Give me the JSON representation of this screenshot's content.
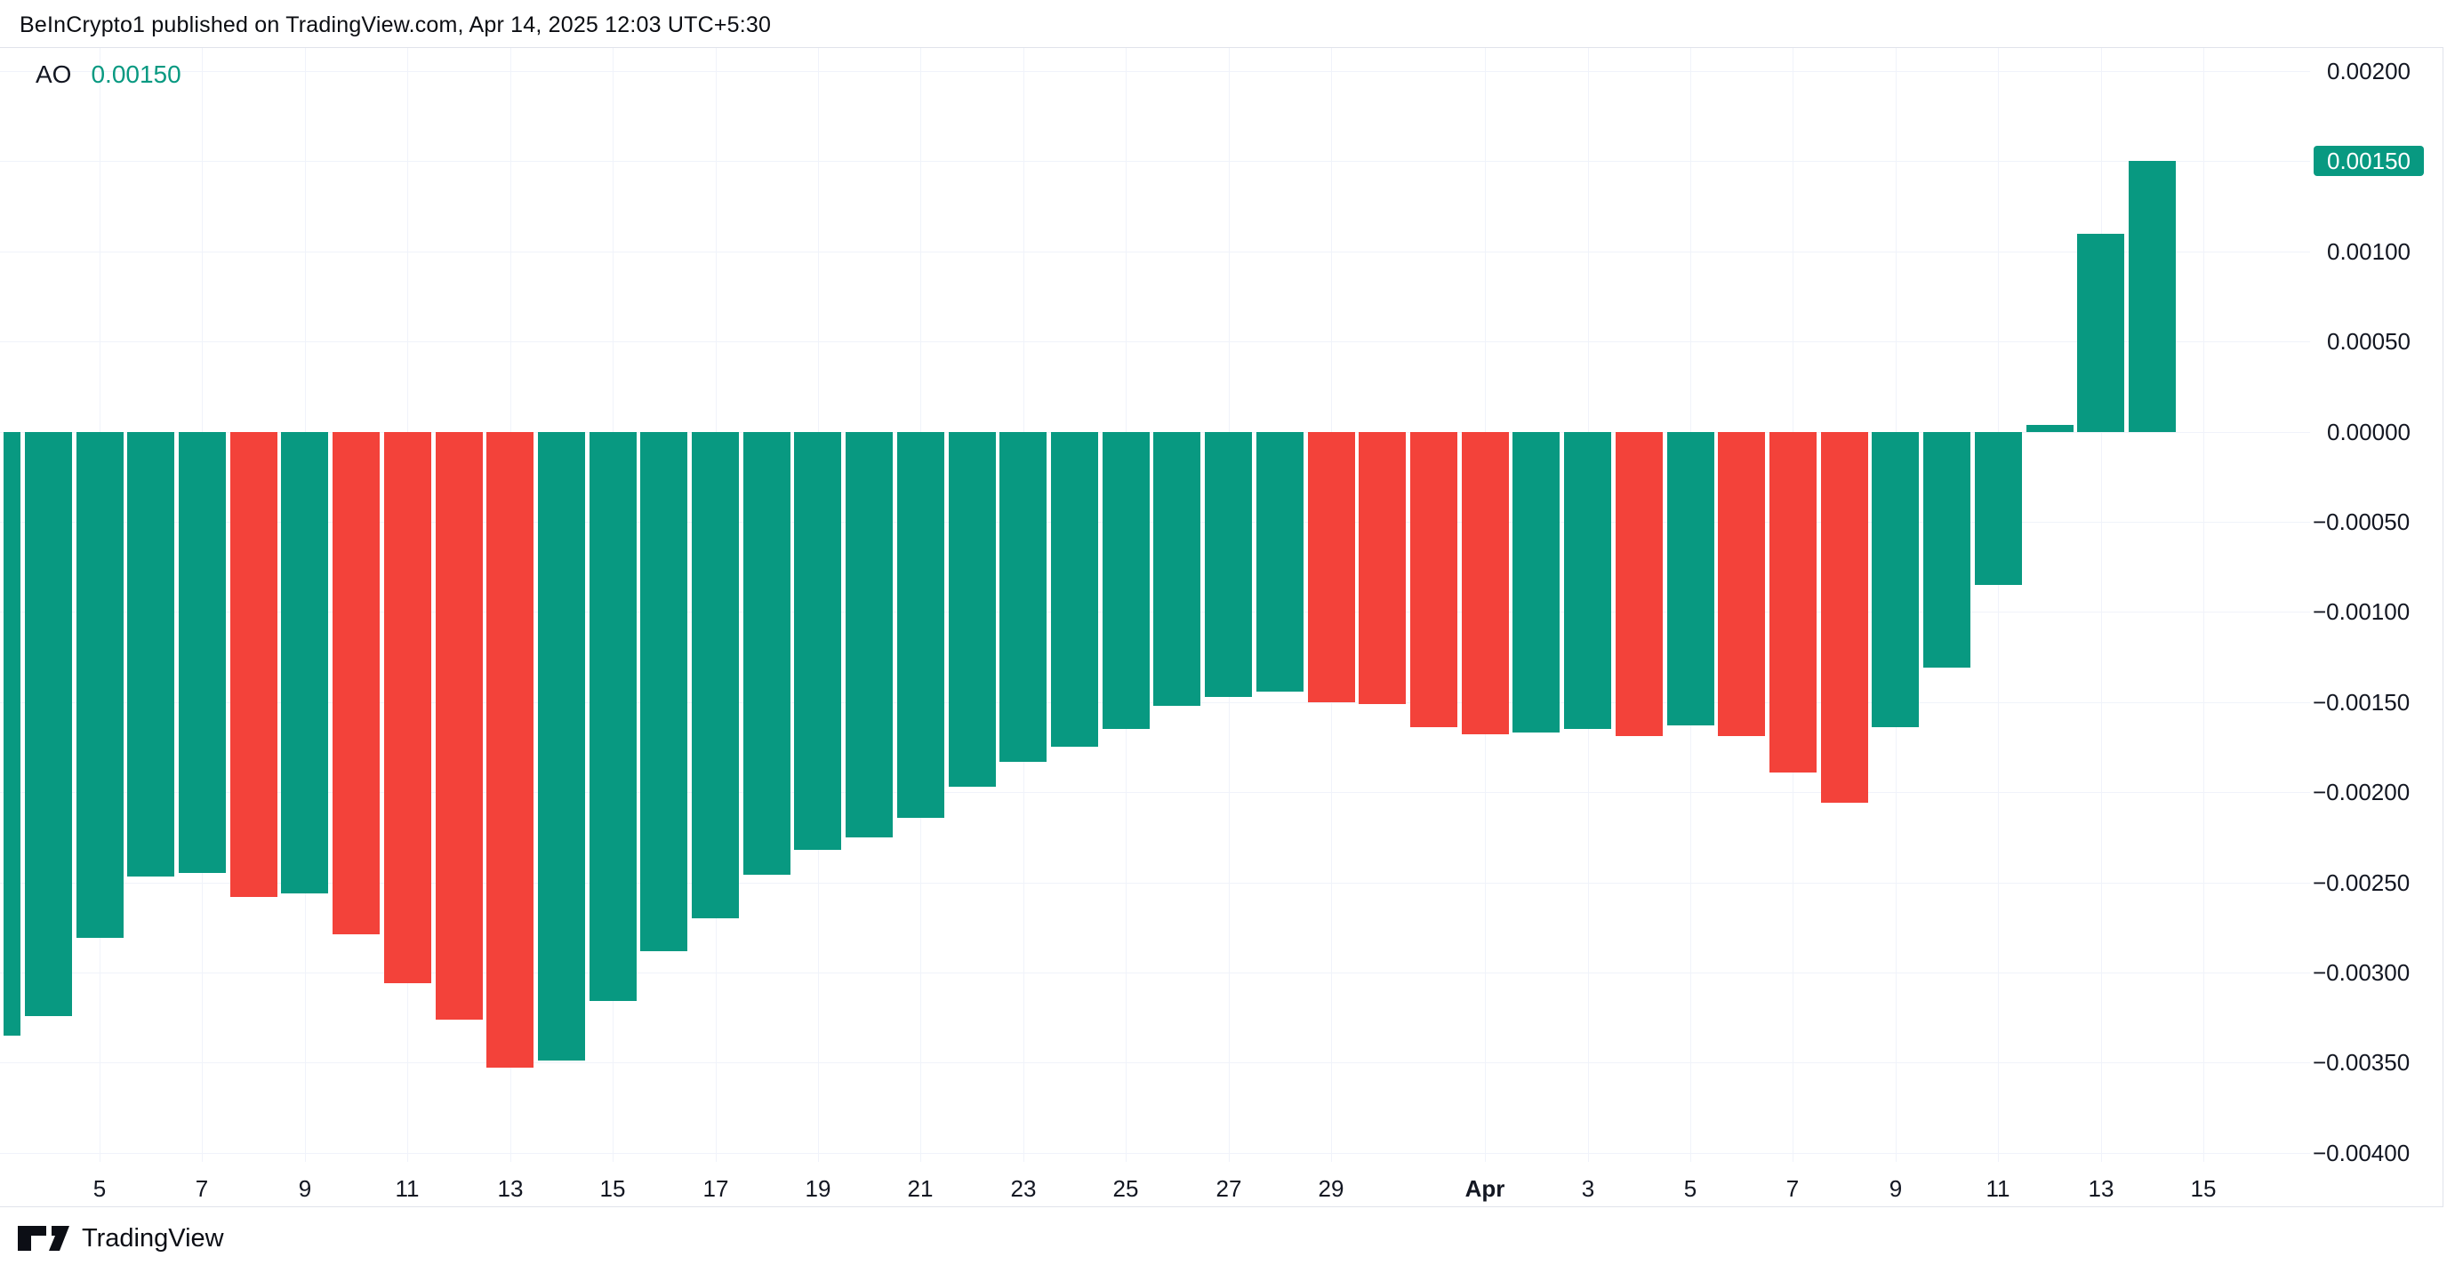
{
  "header": {
    "title": "BeInCrypto1 published on TradingView.com, Apr 14, 2025 12:03 UTC+5:30"
  },
  "indicator": {
    "name": "AO",
    "value": "0.00150"
  },
  "footer": {
    "brand": "TradingView"
  },
  "colors": {
    "up": "#089981",
    "down": "#f3423a",
    "text": "#131722",
    "header_text": "#0b0d12",
    "grid": "#f0f3fa",
    "border": "#e0e3eb",
    "tag_bg": "#089981",
    "tag_text": "#ffffff",
    "background": "#ffffff"
  },
  "price_axis": {
    "tag": {
      "label": "0.00150",
      "value": 0.0015
    },
    "labels": [
      {
        "text": "0.00200",
        "value": 0.002,
        "tagged": false
      },
      {
        "text": "0.00150",
        "value": 0.0015,
        "tagged": true
      },
      {
        "text": "0.00100",
        "value": 0.001,
        "tagged": false
      },
      {
        "text": "0.00050",
        "value": 0.0005,
        "tagged": false
      },
      {
        "text": "0.00000",
        "value": 0.0,
        "tagged": false
      },
      {
        "text": "−0.00050",
        "value": -0.0005,
        "tagged": false
      },
      {
        "text": "−0.00100",
        "value": -0.001,
        "tagged": false
      },
      {
        "text": "−0.00150",
        "value": -0.0015,
        "tagged": false
      },
      {
        "text": "−0.00200",
        "value": -0.002,
        "tagged": false
      },
      {
        "text": "−0.00250",
        "value": -0.0025,
        "tagged": false
      },
      {
        "text": "−0.00300",
        "value": -0.003,
        "tagged": false
      },
      {
        "text": "−0.00350",
        "value": -0.0035,
        "tagged": false
      },
      {
        "text": "−0.00400",
        "value": -0.004,
        "tagged": false
      }
    ]
  },
  "time_axis": {
    "labels": [
      {
        "text": "5",
        "day_index": 2,
        "bold": false
      },
      {
        "text": "7",
        "day_index": 4,
        "bold": false
      },
      {
        "text": "9",
        "day_index": 6,
        "bold": false
      },
      {
        "text": "11",
        "day_index": 8,
        "bold": false
      },
      {
        "text": "13",
        "day_index": 10,
        "bold": false
      },
      {
        "text": "15",
        "day_index": 12,
        "bold": false
      },
      {
        "text": "17",
        "day_index": 14,
        "bold": false
      },
      {
        "text": "19",
        "day_index": 16,
        "bold": false
      },
      {
        "text": "21",
        "day_index": 18,
        "bold": false
      },
      {
        "text": "23",
        "day_index": 20,
        "bold": false
      },
      {
        "text": "25",
        "day_index": 22,
        "bold": false
      },
      {
        "text": "27",
        "day_index": 24,
        "bold": false
      },
      {
        "text": "29",
        "day_index": 26,
        "bold": false
      },
      {
        "text": "Apr",
        "day_index": 29,
        "bold": true
      },
      {
        "text": "3",
        "day_index": 31,
        "bold": false
      },
      {
        "text": "5",
        "day_index": 33,
        "bold": false
      },
      {
        "text": "7",
        "day_index": 35,
        "bold": false
      },
      {
        "text": "9",
        "day_index": 37,
        "bold": false
      },
      {
        "text": "11",
        "day_index": 39,
        "bold": false
      },
      {
        "text": "13",
        "day_index": 41,
        "bold": false
      },
      {
        "text": "15",
        "day_index": 43,
        "bold": false
      }
    ]
  },
  "chart_data": {
    "type": "bar",
    "title": "AO (Awesome Oscillator) histogram",
    "grid": true,
    "legend_position": "none",
    "ylim": [
      -0.00405,
      0.00213
    ],
    "zero_line": 0,
    "y_tick_step": 0.0005,
    "categories": [
      "Mar 3",
      "Mar 4",
      "Mar 5",
      "Mar 6",
      "Mar 7",
      "Mar 8",
      "Mar 9",
      "Mar 10",
      "Mar 11",
      "Mar 12",
      "Mar 13",
      "Mar 14",
      "Mar 15",
      "Mar 16",
      "Mar 17",
      "Mar 18",
      "Mar 19",
      "Mar 20",
      "Mar 21",
      "Mar 22",
      "Mar 23",
      "Mar 24",
      "Mar 25",
      "Mar 26",
      "Mar 27",
      "Mar 28",
      "Mar 29",
      "Mar 30",
      "Mar 31",
      "Apr 1",
      "Apr 2",
      "Apr 3",
      "Apr 4",
      "Apr 5",
      "Apr 6",
      "Apr 7",
      "Apr 8",
      "Apr 9",
      "Apr 10",
      "Apr 11",
      "Apr 12",
      "Apr 13",
      "Apr 14"
    ],
    "values": [
      -0.00335,
      -0.00324,
      -0.00281,
      -0.00247,
      -0.00245,
      -0.00258,
      -0.00256,
      -0.00279,
      -0.00306,
      -0.00326,
      -0.00353,
      -0.00349,
      -0.00316,
      -0.00288,
      -0.0027,
      -0.00246,
      -0.00232,
      -0.00225,
      -0.00214,
      -0.00197,
      -0.00183,
      -0.00175,
      -0.00165,
      -0.00152,
      -0.00147,
      -0.00144,
      -0.0015,
      -0.00151,
      -0.00164,
      -0.00168,
      -0.00167,
      -0.00165,
      -0.00169,
      -0.00163,
      -0.00169,
      -0.00189,
      -0.00206,
      -0.00164,
      -0.00131,
      -0.00085,
      4e-05,
      0.0011,
      0.0015
    ],
    "bar_directions": [
      "up",
      "up",
      "up",
      "up",
      "up",
      "down",
      "up",
      "down",
      "down",
      "down",
      "down",
      "up",
      "up",
      "up",
      "up",
      "up",
      "up",
      "up",
      "up",
      "up",
      "up",
      "up",
      "up",
      "up",
      "up",
      "up",
      "down",
      "down",
      "down",
      "down",
      "up",
      "up",
      "down",
      "up",
      "down",
      "down",
      "down",
      "up",
      "up",
      "up",
      "up",
      "up",
      "up"
    ]
  }
}
